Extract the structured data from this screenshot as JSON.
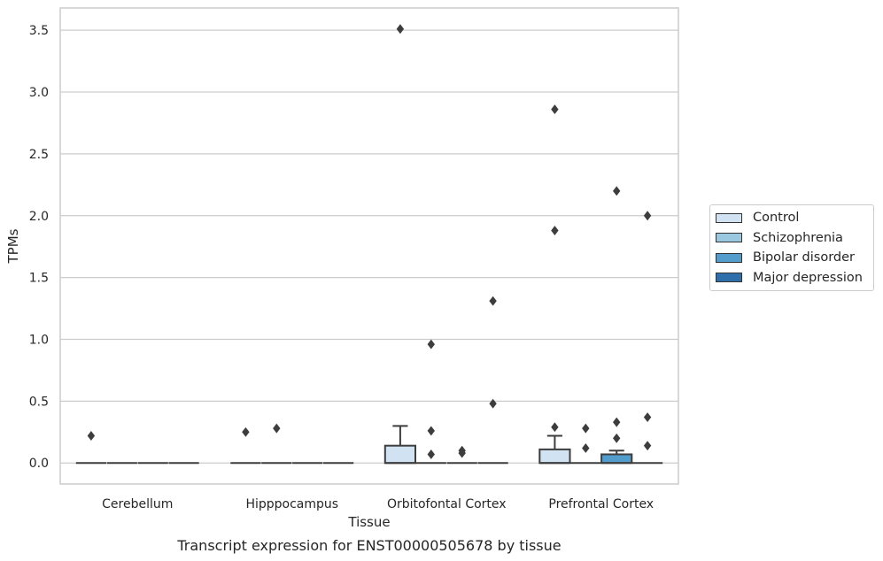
{
  "chart_data": {
    "type": "box",
    "title": "",
    "caption": "Transcript expression for ENST00000505678 by tissue",
    "xlabel": "Tissue",
    "ylabel": "TPMs",
    "ylim": [
      -0.17,
      3.68
    ],
    "yticks": [
      0.0,
      0.5,
      1.0,
      1.5,
      2.0,
      2.5,
      3.0,
      3.5
    ],
    "ytick_labels": [
      "0.0",
      "0.5",
      "1.0",
      "1.5",
      "2.0",
      "2.5",
      "3.0",
      "3.5"
    ],
    "grid": "horizontal",
    "legend_position": "right",
    "categories": [
      "Cerebellum",
      "Hipppocampus",
      "Orbitofontal Cortex",
      "Prefrontal Cortex"
    ],
    "series": [
      {
        "name": "Control",
        "color": "#d1e2f2",
        "boxes": [
          {
            "q1": 0,
            "median": 0,
            "q3": 0,
            "whislo": 0,
            "whishi": 0,
            "fliers": [
              0.22
            ]
          },
          {
            "q1": 0,
            "median": 0,
            "q3": 0,
            "whislo": 0,
            "whishi": 0,
            "fliers": [
              0.25
            ]
          },
          {
            "q1": 0,
            "median": 0,
            "q3": 0.14,
            "whislo": 0,
            "whishi": 0.3,
            "fliers": [
              3.51
            ]
          },
          {
            "q1": 0,
            "median": 0,
            "q3": 0.11,
            "whislo": 0,
            "whishi": 0.22,
            "fliers": [
              2.86,
              1.88,
              0.29
            ]
          }
        ]
      },
      {
        "name": "Schizophrenia",
        "color": "#9ac8e0",
        "boxes": [
          {
            "q1": 0,
            "median": 0,
            "q3": 0,
            "whislo": 0,
            "whishi": 0,
            "fliers": []
          },
          {
            "q1": 0,
            "median": 0,
            "q3": 0,
            "whislo": 0,
            "whishi": 0,
            "fliers": [
              0.28
            ]
          },
          {
            "q1": 0,
            "median": 0,
            "q3": 0,
            "whislo": 0,
            "whishi": 0,
            "fliers": [
              0.96,
              0.26,
              0.07
            ]
          },
          {
            "q1": 0,
            "median": 0,
            "q3": 0,
            "whislo": 0,
            "whishi": 0,
            "fliers": [
              0.28,
              0.12
            ]
          }
        ]
      },
      {
        "name": "Bipolar disorder",
        "color": "#529dcc",
        "boxes": [
          {
            "q1": 0,
            "median": 0,
            "q3": 0,
            "whislo": 0,
            "whishi": 0,
            "fliers": []
          },
          {
            "q1": 0,
            "median": 0,
            "q3": 0,
            "whislo": 0,
            "whishi": 0,
            "fliers": []
          },
          {
            "q1": 0,
            "median": 0,
            "q3": 0,
            "whislo": 0,
            "whishi": 0,
            "fliers": [
              0.1,
              0.08
            ]
          },
          {
            "q1": 0,
            "median": 0,
            "q3": 0.07,
            "whislo": 0,
            "whishi": 0.1,
            "fliers": [
              2.2,
              0.33,
              0.2
            ]
          }
        ]
      },
      {
        "name": "Major depression",
        "color": "#2e6fab",
        "boxes": [
          {
            "q1": 0,
            "median": 0,
            "q3": 0,
            "whislo": 0,
            "whishi": 0,
            "fliers": []
          },
          {
            "q1": 0,
            "median": 0,
            "q3": 0,
            "whislo": 0,
            "whishi": 0,
            "fliers": []
          },
          {
            "q1": 0,
            "median": 0,
            "q3": 0,
            "whislo": 0,
            "whishi": 0,
            "fliers": [
              1.31,
              0.48
            ]
          },
          {
            "q1": 0,
            "median": 0,
            "q3": 0,
            "whislo": 0,
            "whishi": 0,
            "fliers": [
              2.0,
              0.37,
              0.14
            ]
          }
        ]
      }
    ]
  }
}
